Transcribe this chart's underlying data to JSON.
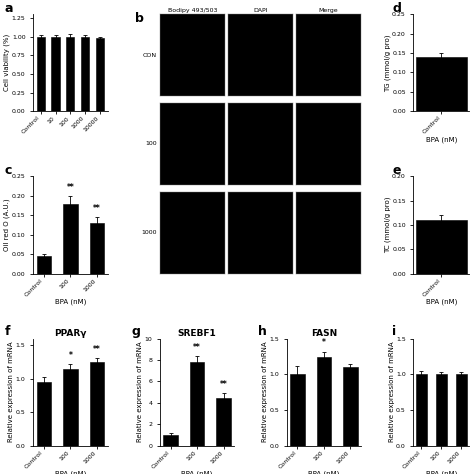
{
  "panel_a": {
    "label": "a",
    "categories": [
      "Control",
      "10",
      "100",
      "1000",
      "10000"
    ],
    "values": [
      1.0,
      1.0,
      1.0,
      1.0,
      0.98
    ],
    "errors": [
      0.02,
      0.02,
      0.03,
      0.02,
      0.02
    ],
    "ylabel": "Cell viability (%)",
    "ylim": [
      0,
      1.3
    ],
    "yticks": [
      0,
      0.25,
      0.5,
      0.75,
      1.0,
      1.25
    ],
    "bar_color": "#000000",
    "sig_labels": [
      "",
      "",
      "",
      "",
      ""
    ]
  },
  "panel_c": {
    "label": "c",
    "categories": [
      "Control",
      "100",
      "1000"
    ],
    "values": [
      0.045,
      0.18,
      0.13
    ],
    "errors": [
      0.005,
      0.02,
      0.015
    ],
    "ylabel": "Oil red O (A.U.)",
    "ylim": [
      0,
      0.25
    ],
    "yticks": [
      0.0,
      0.05,
      0.1,
      0.15,
      0.2,
      0.25
    ],
    "xlabel": "BPA (nM)",
    "bar_color": "#000000",
    "sig_labels": [
      "",
      "**",
      "**"
    ]
  },
  "panel_d": {
    "label": "d",
    "categories": [
      "Control"
    ],
    "values": [
      0.14
    ],
    "errors": [
      0.01
    ],
    "ylabel": "TG (mmol/g pro)",
    "ylim": [
      0,
      0.25
    ],
    "yticks": [
      0.0,
      0.05,
      0.1,
      0.15,
      0.2,
      0.25
    ],
    "xlabel": "BPA (nM)",
    "bar_color": "#000000",
    "sig_labels": [
      ""
    ]
  },
  "panel_e": {
    "label": "e",
    "categories": [
      "Control"
    ],
    "values": [
      0.11
    ],
    "errors": [
      0.01
    ],
    "ylabel": "TC (mmol/g pro)",
    "ylim": [
      0,
      0.2
    ],
    "yticks": [
      0.0,
      0.05,
      0.1,
      0.15,
      0.2
    ],
    "xlabel": "BPA (nM)",
    "bar_color": "#000000",
    "sig_labels": [
      ""
    ]
  },
  "panel_f": {
    "label": "f",
    "title": "PPARγ",
    "categories": [
      "Control",
      "100",
      "1000"
    ],
    "values": [
      0.95,
      1.15,
      1.25
    ],
    "errors": [
      0.08,
      0.07,
      0.06
    ],
    "ylabel": "Relative expression of mRNA",
    "ylim": [
      0,
      1.6
    ],
    "yticks": [
      0.0,
      0.5,
      1.0,
      1.5
    ],
    "xlabel": "BPA (nM)",
    "bar_color": "#000000",
    "sig_labels": [
      "",
      "*",
      "**"
    ]
  },
  "panel_g": {
    "label": "g",
    "title": "SREBF1",
    "categories": [
      "Control",
      "100",
      "1000"
    ],
    "values": [
      1.0,
      7.8,
      4.5
    ],
    "errors": [
      0.15,
      0.55,
      0.38
    ],
    "ylabel": "Relative expression of mRNA",
    "ylim": [
      0,
      10
    ],
    "yticks": [
      0,
      2,
      4,
      6,
      8,
      10
    ],
    "xlabel": "BPA (nM)",
    "bar_color": "#000000",
    "sig_labels": [
      "",
      "**",
      "**"
    ]
  },
  "panel_h": {
    "label": "h",
    "title": "FASN",
    "categories": [
      "Control",
      "100",
      "1000"
    ],
    "values": [
      1.0,
      1.25,
      1.1
    ],
    "errors": [
      0.12,
      0.07,
      0.05
    ],
    "ylabel": "Relative expression of mRNA",
    "ylim": [
      0,
      1.5
    ],
    "yticks": [
      0.0,
      0.5,
      1.0,
      1.5
    ],
    "xlabel": "BPA (nM)",
    "bar_color": "#000000",
    "sig_labels": [
      "",
      "*",
      ""
    ]
  },
  "panel_i": {
    "label": "i",
    "title": "",
    "categories": [
      "Control",
      "100",
      "1000"
    ],
    "values": [
      1.0,
      1.0,
      1.0
    ],
    "errors": [
      0.05,
      0.04,
      0.04
    ],
    "ylabel": "Relative expression of mRNA",
    "ylim": [
      0,
      1.5
    ],
    "yticks": [
      0.0,
      0.5,
      1.0,
      1.5
    ],
    "xlabel": "BPA (nM)",
    "bar_color": "#000000",
    "sig_labels": [
      "",
      "",
      ""
    ]
  },
  "micro_cols": [
    "Bodipy 493/503",
    "DAPI",
    "Merge"
  ],
  "micro_rows": [
    "CON",
    "100",
    "1000"
  ],
  "background_color": "#ffffff",
  "bar_width": 0.55,
  "label_fontsize": 5.0,
  "tick_fontsize": 4.5,
  "title_fontsize": 6.5,
  "panel_label_fontsize": 9
}
